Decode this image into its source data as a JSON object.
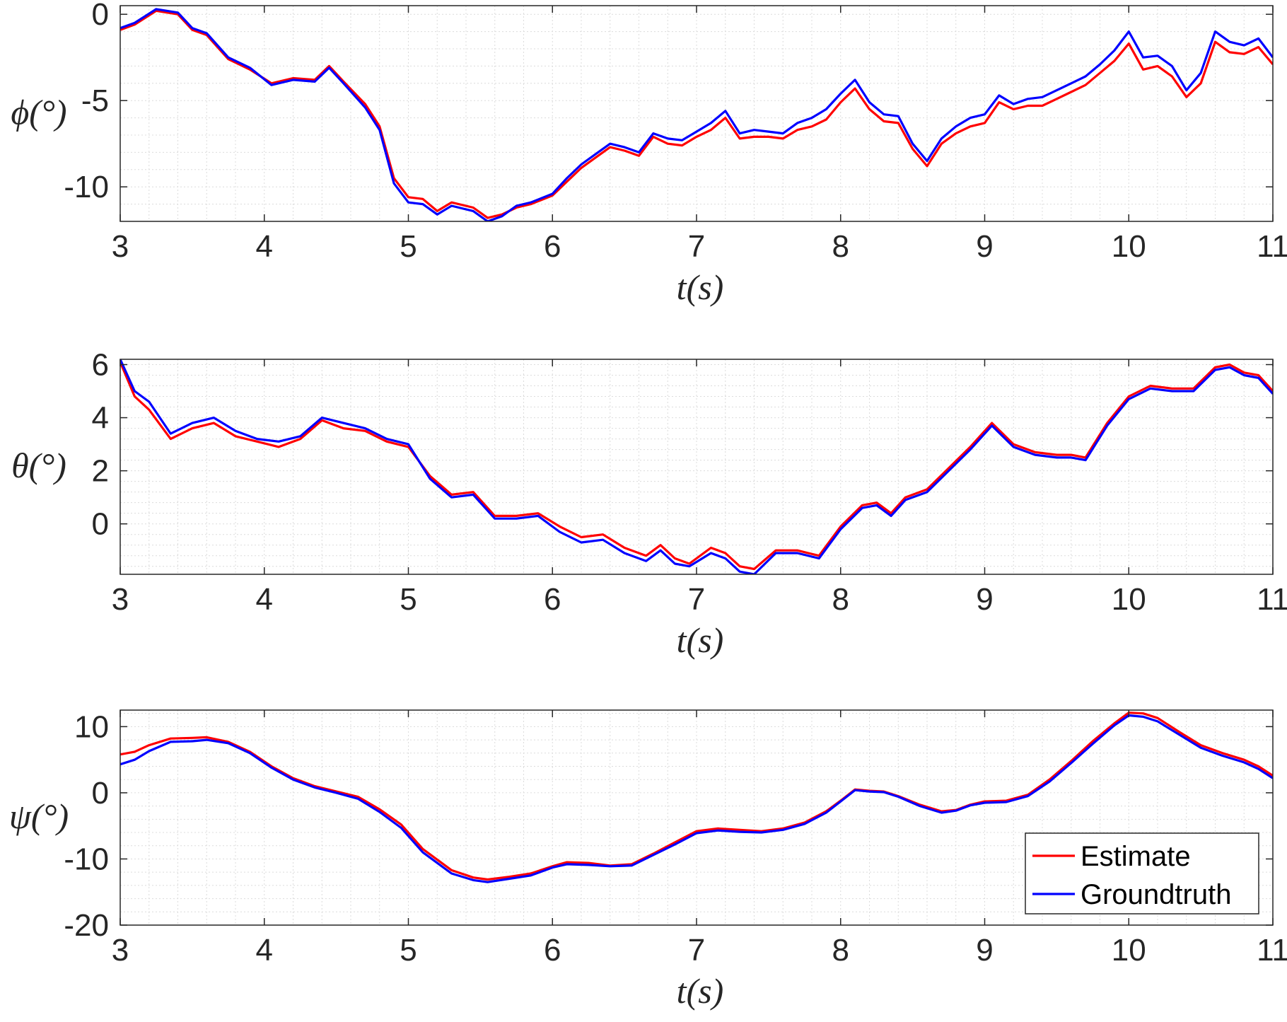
{
  "colors": {
    "estimate": "#ff0000",
    "groundtruth": "#0000ff",
    "axis": "#262626",
    "grid": "#dcdcdc"
  },
  "legend": {
    "entries": [
      "Estimate",
      "Groundtruth"
    ],
    "location": "bottom-right of third panel"
  },
  "chart_data": [
    {
      "type": "line",
      "ylabel": "ϕ(°)",
      "xlabel": "t(s)",
      "xlim": [
        3,
        11
      ],
      "ylim": [
        -12,
        0.5
      ],
      "xticks": [
        "3",
        "4",
        "5",
        "6",
        "7",
        "8",
        "9",
        "10",
        "11"
      ],
      "yticks": [
        "-10",
        "-5",
        "0"
      ],
      "grid": true,
      "series": [
        {
          "name": "Estimate",
          "color": "#ff0000",
          "x": [
            3,
            3.1,
            3.25,
            3.4,
            3.5,
            3.6,
            3.75,
            3.9,
            4.05,
            4.2,
            4.35,
            4.45,
            4.55,
            4.7,
            4.8,
            4.9,
            5.0,
            5.1,
            5.2,
            5.3,
            5.45,
            5.55,
            5.65,
            5.75,
            5.85,
            6.0,
            6.1,
            6.2,
            6.3,
            6.4,
            6.5,
            6.6,
            6.7,
            6.8,
            6.9,
            7.0,
            7.1,
            7.2,
            7.3,
            7.4,
            7.5,
            7.6,
            7.7,
            7.8,
            7.9,
            8.0,
            8.1,
            8.2,
            8.3,
            8.4,
            8.5,
            8.6,
            8.7,
            8.8,
            8.9,
            9.0,
            9.1,
            9.2,
            9.3,
            9.4,
            9.5,
            9.6,
            9.7,
            9.8,
            9.9,
            10.0,
            10.1,
            10.2,
            10.3,
            10.4,
            10.5,
            10.6,
            10.7,
            10.8,
            10.9,
            11.0
          ],
          "y": [
            -0.9,
            -0.6,
            0.2,
            0,
            -0.9,
            -1.2,
            -2.6,
            -3.2,
            -4.0,
            -3.7,
            -3.8,
            -3.0,
            -3.9,
            -5.2,
            -6.5,
            -9.5,
            -10.6,
            -10.7,
            -11.4,
            -10.9,
            -11.2,
            -11.8,
            -11.6,
            -11.2,
            -11.0,
            -10.5,
            -9.7,
            -8.9,
            -8.3,
            -7.7,
            -7.9,
            -8.2,
            -7.1,
            -7.5,
            -7.6,
            -7.1,
            -6.7,
            -6.0,
            -7.2,
            -7.1,
            -7.1,
            -7.2,
            -6.7,
            -6.5,
            -6.1,
            -5.1,
            -4.3,
            -5.5,
            -6.2,
            -6.3,
            -7.8,
            -8.8,
            -7.5,
            -6.9,
            -6.5,
            -6.3,
            -5.1,
            -5.5,
            -5.3,
            -5.3,
            -4.9,
            -4.5,
            -4.1,
            -3.4,
            -2.7,
            -1.7,
            -3.2,
            -3.0,
            -3.6,
            -4.8,
            -4.0,
            -1.6,
            -2.2,
            -2.3,
            -1.9,
            -2.9
          ]
        },
        {
          "name": "Groundtruth",
          "color": "#0000ff",
          "x": [
            3,
            3.1,
            3.25,
            3.4,
            3.5,
            3.6,
            3.75,
            3.9,
            4.05,
            4.2,
            4.35,
            4.45,
            4.55,
            4.7,
            4.8,
            4.9,
            5.0,
            5.1,
            5.2,
            5.3,
            5.45,
            5.55,
            5.65,
            5.75,
            5.85,
            6.0,
            6.1,
            6.2,
            6.3,
            6.4,
            6.5,
            6.6,
            6.7,
            6.8,
            6.9,
            7.0,
            7.1,
            7.2,
            7.3,
            7.4,
            7.5,
            7.6,
            7.7,
            7.8,
            7.9,
            8.0,
            8.1,
            8.2,
            8.3,
            8.4,
            8.5,
            8.6,
            8.7,
            8.8,
            8.9,
            9.0,
            9.1,
            9.2,
            9.3,
            9.4,
            9.5,
            9.6,
            9.7,
            9.8,
            9.9,
            10.0,
            10.1,
            10.2,
            10.3,
            10.4,
            10.5,
            10.6,
            10.7,
            10.8,
            10.9,
            11.0
          ],
          "y": [
            -0.8,
            -0.5,
            0.3,
            0.1,
            -0.8,
            -1.1,
            -2.5,
            -3.1,
            -4.1,
            -3.8,
            -3.9,
            -3.1,
            -4.0,
            -5.4,
            -6.7,
            -9.8,
            -10.9,
            -11.0,
            -11.6,
            -11.1,
            -11.4,
            -12.0,
            -11.7,
            -11.1,
            -10.9,
            -10.4,
            -9.5,
            -8.7,
            -8.1,
            -7.5,
            -7.7,
            -8.0,
            -6.9,
            -7.2,
            -7.3,
            -6.8,
            -6.3,
            -5.6,
            -6.9,
            -6.7,
            -6.8,
            -6.9,
            -6.3,
            -6.0,
            -5.5,
            -4.6,
            -3.8,
            -5.1,
            -5.8,
            -5.9,
            -7.5,
            -8.5,
            -7.2,
            -6.5,
            -6.0,
            -5.8,
            -4.7,
            -5.2,
            -4.9,
            -4.8,
            -4.4,
            -4.0,
            -3.6,
            -2.9,
            -2.1,
            -1.0,
            -2.5,
            -2.4,
            -3.0,
            -4.4,
            -3.4,
            -1.0,
            -1.6,
            -1.8,
            -1.4,
            -2.5
          ]
        }
      ]
    },
    {
      "type": "line",
      "ylabel": "θ(°)",
      "xlabel": "t(s)",
      "xlim": [
        3,
        11
      ],
      "ylim": [
        -1.9,
        6.2
      ],
      "xticks": [
        "3",
        "4",
        "5",
        "6",
        "7",
        "8",
        "9",
        "10",
        "11"
      ],
      "yticks": [
        "0",
        "2",
        "4",
        "6"
      ],
      "grid": true,
      "series": [
        {
          "name": "Estimate",
          "color": "#ff0000",
          "x": [
            3,
            3.1,
            3.2,
            3.35,
            3.5,
            3.65,
            3.8,
            3.95,
            4.1,
            4.25,
            4.4,
            4.55,
            4.7,
            4.85,
            5.0,
            5.15,
            5.3,
            5.45,
            5.6,
            5.75,
            5.9,
            6.05,
            6.2,
            6.35,
            6.5,
            6.65,
            6.75,
            6.85,
            6.95,
            7.1,
            7.2,
            7.3,
            7.4,
            7.55,
            7.7,
            7.85,
            8.0,
            8.15,
            8.25,
            8.35,
            8.45,
            8.6,
            8.75,
            8.9,
            9.05,
            9.2,
            9.35,
            9.5,
            9.6,
            9.7,
            9.85,
            10.0,
            10.15,
            10.3,
            10.45,
            10.6,
            10.7,
            10.8,
            10.9,
            11.0
          ],
          "y": [
            6.1,
            4.8,
            4.3,
            3.2,
            3.6,
            3.8,
            3.3,
            3.1,
            2.9,
            3.2,
            3.9,
            3.6,
            3.5,
            3.1,
            2.9,
            1.8,
            1.1,
            1.2,
            0.3,
            0.3,
            0.4,
            -0.1,
            -0.5,
            -0.4,
            -0.9,
            -1.2,
            -0.8,
            -1.3,
            -1.5,
            -0.9,
            -1.1,
            -1.6,
            -1.7,
            -1.0,
            -1.0,
            -1.2,
            -0.1,
            0.7,
            0.8,
            0.4,
            1.0,
            1.3,
            2.1,
            2.9,
            3.8,
            3.0,
            2.7,
            2.6,
            2.6,
            2.5,
            3.8,
            4.8,
            5.2,
            5.1,
            5.1,
            5.9,
            6.0,
            5.7,
            5.6,
            5.0
          ]
        },
        {
          "name": "Groundtruth",
          "color": "#0000ff",
          "x": [
            3,
            3.1,
            3.2,
            3.35,
            3.5,
            3.65,
            3.8,
            3.95,
            4.1,
            4.25,
            4.4,
            4.55,
            4.7,
            4.85,
            5.0,
            5.15,
            5.3,
            5.45,
            5.6,
            5.75,
            5.9,
            6.05,
            6.2,
            6.35,
            6.5,
            6.65,
            6.75,
            6.85,
            6.95,
            7.1,
            7.2,
            7.3,
            7.4,
            7.55,
            7.7,
            7.85,
            8.0,
            8.15,
            8.25,
            8.35,
            8.45,
            8.6,
            8.75,
            8.9,
            9.05,
            9.2,
            9.35,
            9.5,
            9.6,
            9.7,
            9.85,
            10.0,
            10.15,
            10.3,
            10.45,
            10.6,
            10.7,
            10.8,
            10.9,
            11.0
          ],
          "y": [
            6.2,
            5.0,
            4.6,
            3.4,
            3.8,
            4.0,
            3.5,
            3.2,
            3.1,
            3.3,
            4.0,
            3.8,
            3.6,
            3.2,
            3.0,
            1.7,
            1.0,
            1.1,
            0.2,
            0.2,
            0.3,
            -0.3,
            -0.7,
            -0.6,
            -1.1,
            -1.4,
            -1.0,
            -1.5,
            -1.6,
            -1.1,
            -1.3,
            -1.8,
            -1.9,
            -1.1,
            -1.1,
            -1.3,
            -0.2,
            0.6,
            0.7,
            0.3,
            0.9,
            1.2,
            2.0,
            2.8,
            3.7,
            2.9,
            2.6,
            2.5,
            2.5,
            2.4,
            3.7,
            4.7,
            5.1,
            5.0,
            5.0,
            5.8,
            5.9,
            5.6,
            5.5,
            4.9
          ]
        }
      ]
    },
    {
      "type": "line",
      "ylabel": "ψ(°)",
      "xlabel": "t(s)",
      "xlim": [
        3,
        11
      ],
      "ylim": [
        -20,
        12.5
      ],
      "xticks": [
        "3",
        "4",
        "5",
        "6",
        "7",
        "8",
        "9",
        "10",
        "11"
      ],
      "yticks": [
        "-20",
        "-10",
        "0",
        "10"
      ],
      "grid": true,
      "series": [
        {
          "name": "Estimate",
          "color": "#ff0000",
          "x": [
            3,
            3.1,
            3.2,
            3.35,
            3.5,
            3.6,
            3.75,
            3.9,
            4.05,
            4.2,
            4.35,
            4.5,
            4.65,
            4.8,
            4.95,
            5.1,
            5.3,
            5.45,
            5.55,
            5.7,
            5.85,
            6.0,
            6.1,
            6.25,
            6.4,
            6.55,
            6.7,
            6.85,
            7.0,
            7.15,
            7.3,
            7.45,
            7.6,
            7.75,
            7.9,
            8.0,
            8.1,
            8.2,
            8.3,
            8.4,
            8.55,
            8.7,
            8.8,
            8.9,
            9.0,
            9.15,
            9.3,
            9.45,
            9.6,
            9.75,
            9.9,
            10.0,
            10.1,
            10.2,
            10.35,
            10.5,
            10.65,
            10.8,
            10.9,
            11.0
          ],
          "y": [
            5.8,
            6.2,
            7.2,
            8.2,
            8.3,
            8.4,
            7.7,
            6.2,
            4.0,
            2.2,
            1.0,
            0.2,
            -0.6,
            -2.5,
            -4.8,
            -8.5,
            -11.7,
            -12.8,
            -13.1,
            -12.7,
            -12.2,
            -11.1,
            -10.5,
            -10.6,
            -11.0,
            -10.8,
            -9.2,
            -7.5,
            -5.8,
            -5.4,
            -5.6,
            -5.8,
            -5.4,
            -4.5,
            -2.8,
            -1.2,
            0.5,
            0.3,
            0.2,
            -0.5,
            -1.8,
            -2.8,
            -2.6,
            -1.8,
            -1.3,
            -1.2,
            -0.3,
            2.0,
            4.8,
            7.8,
            10.5,
            12.1,
            12.0,
            11.3,
            9.2,
            7.2,
            6.0,
            5.0,
            4.0,
            2.6
          ]
        },
        {
          "name": "Groundtruth",
          "color": "#0000ff",
          "x": [
            3,
            3.1,
            3.2,
            3.35,
            3.5,
            3.6,
            3.75,
            3.9,
            4.05,
            4.2,
            4.35,
            4.5,
            4.65,
            4.8,
            4.95,
            5.1,
            5.3,
            5.45,
            5.55,
            5.7,
            5.85,
            6.0,
            6.1,
            6.25,
            6.4,
            6.55,
            6.7,
            6.85,
            7.0,
            7.15,
            7.3,
            7.45,
            7.6,
            7.75,
            7.9,
            8.0,
            8.1,
            8.2,
            8.3,
            8.4,
            8.55,
            8.7,
            8.8,
            8.9,
            9.0,
            9.15,
            9.3,
            9.45,
            9.6,
            9.75,
            9.9,
            10.0,
            10.1,
            10.2,
            10.35,
            10.5,
            10.65,
            10.8,
            10.9,
            11.0
          ],
          "y": [
            4.3,
            5.0,
            6.3,
            7.7,
            7.8,
            8.0,
            7.5,
            6.0,
            3.8,
            2.0,
            0.8,
            0.0,
            -0.9,
            -2.9,
            -5.3,
            -9.0,
            -12.2,
            -13.2,
            -13.5,
            -13.0,
            -12.5,
            -11.3,
            -10.8,
            -10.9,
            -11.1,
            -11.0,
            -9.4,
            -7.8,
            -6.1,
            -5.7,
            -5.9,
            -6.0,
            -5.6,
            -4.7,
            -3.0,
            -1.3,
            0.4,
            0.2,
            0.1,
            -0.6,
            -2.0,
            -3.0,
            -2.7,
            -1.9,
            -1.5,
            -1.4,
            -0.5,
            1.7,
            4.5,
            7.4,
            10.2,
            11.7,
            11.5,
            10.8,
            8.8,
            6.8,
            5.6,
            4.6,
            3.6,
            2.2
          ]
        }
      ]
    }
  ]
}
